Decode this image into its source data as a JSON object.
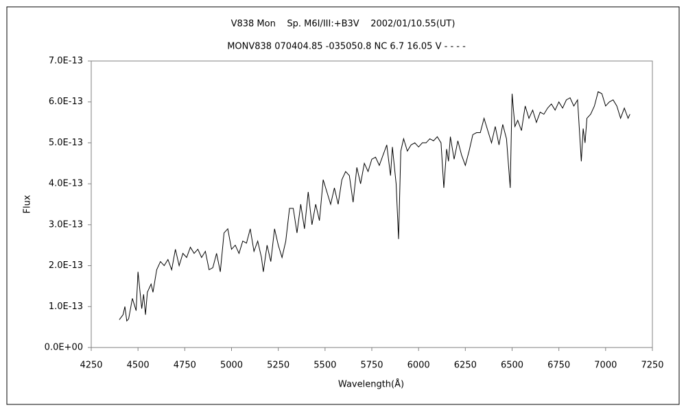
{
  "chart_data": {
    "type": "line",
    "title": "V838 Mon    Sp. M6I/III:+B3V    2002/01/10.55(UT)",
    "subtitle": "MONV838 070404.85 -035050.8 NC 6.7 16.05 V - - - -",
    "x_label": "Wavelength(Å)",
    "y_label": "Flux",
    "color": "#000000",
    "xlim": [
      4250,
      7250
    ],
    "xticks": [
      4250,
      4500,
      4750,
      5000,
      5250,
      5500,
      5750,
      6000,
      6250,
      6500,
      6750,
      7000,
      7250
    ],
    "ylim": [
      0,
      7e-13
    ],
    "yticks": [
      {
        "value": 0,
        "label": "0.0E+00"
      },
      {
        "value": 1e-13,
        "label": "1.0E-13"
      },
      {
        "value": 2e-13,
        "label": "2.0E-13"
      },
      {
        "value": 3e-13,
        "label": "3.0E-13"
      },
      {
        "value": 4e-13,
        "label": "4.0E-13"
      },
      {
        "value": 5e-13,
        "label": "5.0E-13"
      },
      {
        "value": 6e-13,
        "label": "6.0E-13"
      },
      {
        "value": 7e-13,
        "label": "7.0E-13"
      }
    ],
    "x": [
      4400,
      4420,
      4430,
      4440,
      4450,
      4470,
      4480,
      4490,
      4500,
      4510,
      4520,
      4530,
      4540,
      4550,
      4570,
      4580,
      4600,
      4620,
      4640,
      4660,
      4680,
      4700,
      4720,
      4740,
      4760,
      4780,
      4800,
      4820,
      4840,
      4860,
      4880,
      4900,
      4920,
      4940,
      4960,
      4980,
      5000,
      5020,
      5040,
      5060,
      5080,
      5100,
      5120,
      5140,
      5160,
      5170,
      5190,
      5210,
      5230,
      5250,
      5270,
      5290,
      5310,
      5330,
      5350,
      5370,
      5390,
      5410,
      5430,
      5450,
      5470,
      5490,
      5510,
      5530,
      5550,
      5570,
      5590,
      5610,
      5630,
      5650,
      5670,
      5690,
      5710,
      5730,
      5750,
      5770,
      5790,
      5810,
      5830,
      5850,
      5860,
      5880,
      5893,
      5905,
      5920,
      5940,
      5960,
      5980,
      6000,
      6020,
      6040,
      6060,
      6080,
      6100,
      6120,
      6135,
      6150,
      6160,
      6170,
      6190,
      6210,
      6230,
      6250,
      6270,
      6290,
      6310,
      6330,
      6350,
      6370,
      6390,
      6410,
      6430,
      6450,
      6470,
      6490,
      6500,
      6515,
      6530,
      6550,
      6570,
      6590,
      6610,
      6630,
      6650,
      6670,
      6690,
      6710,
      6730,
      6750,
      6770,
      6790,
      6810,
      6830,
      6850,
      6870,
      6880,
      6890,
      6900,
      6920,
      6940,
      6960,
      6980,
      7000,
      7020,
      7040,
      7060,
      7080,
      7100,
      7120,
      7130
    ],
    "values": [
      6.8e-14,
      8e-14,
      1e-13,
      6.5e-14,
      7e-14,
      1.2e-13,
      1.05e-13,
      9e-14,
      1.85e-13,
      1.4e-13,
      9.5e-14,
      1.3e-13,
      8e-14,
      1.35e-13,
      1.55e-13,
      1.35e-13,
      1.9e-13,
      2.1e-13,
      2e-13,
      2.15e-13,
      1.9e-13,
      2.4e-13,
      2e-13,
      2.3e-13,
      2.2e-13,
      2.45e-13,
      2.3e-13,
      2.4e-13,
      2.2e-13,
      2.35e-13,
      1.9e-13,
      1.95e-13,
      2.3e-13,
      1.85e-13,
      2.8e-13,
      2.9e-13,
      2.4e-13,
      2.5e-13,
      2.3e-13,
      2.6e-13,
      2.55e-13,
      2.9e-13,
      2.35e-13,
      2.6e-13,
      2.2e-13,
      1.85e-13,
      2.5e-13,
      2.1e-13,
      2.9e-13,
      2.5e-13,
      2.2e-13,
      2.6e-13,
      3.4e-13,
      3.4e-13,
      2.8e-13,
      3.5e-13,
      2.9e-13,
      3.8e-13,
      3e-13,
      3.5e-13,
      3.1e-13,
      4.1e-13,
      3.8e-13,
      3.5e-13,
      3.9e-13,
      3.5e-13,
      4.1e-13,
      4.3e-13,
      4.2e-13,
      3.55e-13,
      4.4e-13,
      4e-13,
      4.5e-13,
      4.3e-13,
      4.6e-13,
      4.65e-13,
      4.45e-13,
      4.7e-13,
      4.95e-13,
      4.2e-13,
      4.9e-13,
      4e-13,
      2.65e-13,
      4.8e-13,
      5.1e-13,
      4.8e-13,
      4.95e-13,
      5e-13,
      4.9e-13,
      5e-13,
      5e-13,
      5.1e-13,
      5.05e-13,
      5.15e-13,
      5e-13,
      3.9e-13,
      4.85e-13,
      4.55e-13,
      5.15e-13,
      4.6e-13,
      5.05e-13,
      4.7e-13,
      4.45e-13,
      4.8e-13,
      5.2e-13,
      5.25e-13,
      5.25e-13,
      5.6e-13,
      5.3e-13,
      5e-13,
      5.4e-13,
      4.95e-13,
      5.45e-13,
      5.1e-13,
      3.9e-13,
      6.2e-13,
      5.4e-13,
      5.55e-13,
      5.3e-13,
      5.9e-13,
      5.6e-13,
      5.8e-13,
      5.5e-13,
      5.75e-13,
      5.7e-13,
      5.85e-13,
      5.95e-13,
      5.8e-13,
      6e-13,
      5.85e-13,
      6.05e-13,
      6.1e-13,
      5.9e-13,
      6.05e-13,
      4.55e-13,
      5.35e-13,
      5e-13,
      5.6e-13,
      5.7e-13,
      5.9e-13,
      6.25e-13,
      6.2e-13,
      5.9e-13,
      6e-13,
      6.05e-13,
      5.9e-13,
      5.6e-13,
      5.85e-13,
      5.6e-13,
      5.7e-13
    ]
  }
}
